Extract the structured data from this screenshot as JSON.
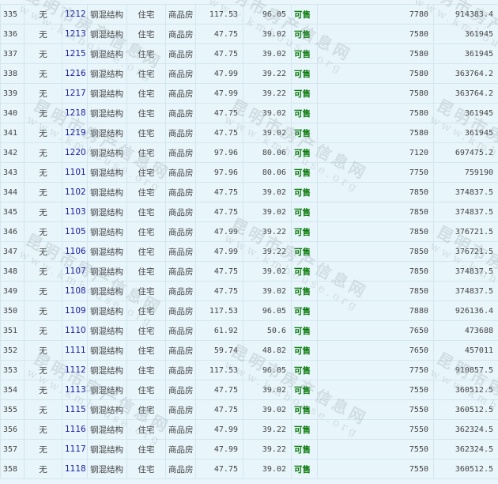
{
  "watermark": {
    "cn": "昆明市房产信息网",
    "url": "www.kmhouse.org"
  },
  "colors": {
    "background": "#e8f5fb",
    "border": "#d4e6ee",
    "room_link": "#1a1aa6",
    "status": "#0a7a0a"
  },
  "rows": [
    {
      "no": "335",
      "mortgage": "无",
      "room": "1212",
      "structure": "钢混结构",
      "use": "住宅",
      "type": "商品房",
      "area": "117.53",
      "inner_area": "96.05",
      "status": "可售",
      "price": "7780",
      "total": "914383.4"
    },
    {
      "no": "336",
      "mortgage": "无",
      "room": "1213",
      "structure": "钢混结构",
      "use": "住宅",
      "type": "商品房",
      "area": "47.75",
      "inner_area": "39.02",
      "status": "可售",
      "price": "7580",
      "total": "361945"
    },
    {
      "no": "337",
      "mortgage": "无",
      "room": "1215",
      "structure": "钢混结构",
      "use": "住宅",
      "type": "商品房",
      "area": "47.75",
      "inner_area": "39.02",
      "status": "可售",
      "price": "7580",
      "total": "361945"
    },
    {
      "no": "338",
      "mortgage": "无",
      "room": "1216",
      "structure": "钢混结构",
      "use": "住宅",
      "type": "商品房",
      "area": "47.99",
      "inner_area": "39.22",
      "status": "可售",
      "price": "7580",
      "total": "363764.2"
    },
    {
      "no": "339",
      "mortgage": "无",
      "room": "1217",
      "structure": "钢混结构",
      "use": "住宅",
      "type": "商品房",
      "area": "47.99",
      "inner_area": "39.22",
      "status": "可售",
      "price": "7580",
      "total": "363764.2"
    },
    {
      "no": "340",
      "mortgage": "无",
      "room": "1218",
      "structure": "钢混结构",
      "use": "住宅",
      "type": "商品房",
      "area": "47.75",
      "inner_area": "39.02",
      "status": "可售",
      "price": "7580",
      "total": "361945"
    },
    {
      "no": "341",
      "mortgage": "无",
      "room": "1219",
      "structure": "钢混结构",
      "use": "住宅",
      "type": "商品房",
      "area": "47.75",
      "inner_area": "39.02",
      "status": "可售",
      "price": "7580",
      "total": "361945"
    },
    {
      "no": "342",
      "mortgage": "无",
      "room": "1220",
      "structure": "钢混结构",
      "use": "住宅",
      "type": "商品房",
      "area": "97.96",
      "inner_area": "80.06",
      "status": "可售",
      "price": "7120",
      "total": "697475.2"
    },
    {
      "no": "343",
      "mortgage": "无",
      "room": "1101",
      "structure": "钢混结构",
      "use": "住宅",
      "type": "商品房",
      "area": "97.96",
      "inner_area": "80.06",
      "status": "可售",
      "price": "7750",
      "total": "759190"
    },
    {
      "no": "344",
      "mortgage": "无",
      "room": "1102",
      "structure": "钢混结构",
      "use": "住宅",
      "type": "商品房",
      "area": "47.75",
      "inner_area": "39.02",
      "status": "可售",
      "price": "7850",
      "total": "374837.5"
    },
    {
      "no": "345",
      "mortgage": "无",
      "room": "1103",
      "structure": "钢混结构",
      "use": "住宅",
      "type": "商品房",
      "area": "47.75",
      "inner_area": "39.02",
      "status": "可售",
      "price": "7850",
      "total": "374837.5"
    },
    {
      "no": "346",
      "mortgage": "无",
      "room": "1105",
      "structure": "钢混结构",
      "use": "住宅",
      "type": "商品房",
      "area": "47.99",
      "inner_area": "39.22",
      "status": "可售",
      "price": "7850",
      "total": "376721.5"
    },
    {
      "no": "347",
      "mortgage": "无",
      "room": "1106",
      "structure": "钢混结构",
      "use": "住宅",
      "type": "商品房",
      "area": "47.99",
      "inner_area": "39.22",
      "status": "可售",
      "price": "7850",
      "total": "376721.5"
    },
    {
      "no": "348",
      "mortgage": "无",
      "room": "1107",
      "structure": "钢混结构",
      "use": "住宅",
      "type": "商品房",
      "area": "47.75",
      "inner_area": "39.02",
      "status": "可售",
      "price": "7850",
      "total": "374837.5"
    },
    {
      "no": "349",
      "mortgage": "无",
      "room": "1108",
      "structure": "钢混结构",
      "use": "住宅",
      "type": "商品房",
      "area": "47.75",
      "inner_area": "39.02",
      "status": "可售",
      "price": "7850",
      "total": "374837.5"
    },
    {
      "no": "350",
      "mortgage": "无",
      "room": "1109",
      "structure": "钢混结构",
      "use": "住宅",
      "type": "商品房",
      "area": "117.53",
      "inner_area": "96.05",
      "status": "可售",
      "price": "7880",
      "total": "926136.4"
    },
    {
      "no": "351",
      "mortgage": "无",
      "room": "1110",
      "structure": "钢混结构",
      "use": "住宅",
      "type": "商品房",
      "area": "61.92",
      "inner_area": "50.6",
      "status": "可售",
      "price": "7650",
      "total": "473688"
    },
    {
      "no": "352",
      "mortgage": "无",
      "room": "1111",
      "structure": "钢混结构",
      "use": "住宅",
      "type": "商品房",
      "area": "59.74",
      "inner_area": "48.82",
      "status": "可售",
      "price": "7650",
      "total": "457011"
    },
    {
      "no": "353",
      "mortgage": "无",
      "room": "1112",
      "structure": "钢混结构",
      "use": "住宅",
      "type": "商品房",
      "area": "117.53",
      "inner_area": "96.05",
      "status": "可售",
      "price": "7750",
      "total": "910857.5"
    },
    {
      "no": "354",
      "mortgage": "无",
      "room": "1113",
      "structure": "钢混结构",
      "use": "住宅",
      "type": "商品房",
      "area": "47.75",
      "inner_area": "39.02",
      "status": "可售",
      "price": "7550",
      "total": "360512.5"
    },
    {
      "no": "355",
      "mortgage": "无",
      "room": "1115",
      "structure": "钢混结构",
      "use": "住宅",
      "type": "商品房",
      "area": "47.75",
      "inner_area": "39.02",
      "status": "可售",
      "price": "7550",
      "total": "360512.5"
    },
    {
      "no": "356",
      "mortgage": "无",
      "room": "1116",
      "structure": "钢混结构",
      "use": "住宅",
      "type": "商品房",
      "area": "47.99",
      "inner_area": "39.22",
      "status": "可售",
      "price": "7550",
      "total": "362324.5"
    },
    {
      "no": "357",
      "mortgage": "无",
      "room": "1117",
      "structure": "钢混结构",
      "use": "住宅",
      "type": "商品房",
      "area": "47.99",
      "inner_area": "39.22",
      "status": "可售",
      "price": "7550",
      "total": "362324.5"
    },
    {
      "no": "358",
      "mortgage": "无",
      "room": "1118",
      "structure": "钢混结构",
      "use": "住宅",
      "type": "商品房",
      "area": "47.75",
      "inner_area": "39.02",
      "status": "可售",
      "price": "7550",
      "total": "360512.5"
    }
  ]
}
